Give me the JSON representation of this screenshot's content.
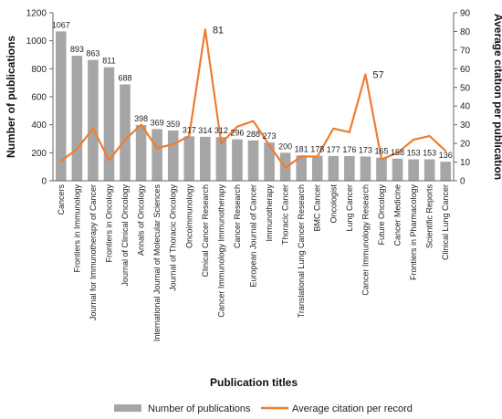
{
  "chart_data": {
    "type": "bar",
    "xlabel": "Publication titles",
    "ylabel": "Number of publications",
    "y2label": "Average citation per publication",
    "ylim": [
      0,
      1200
    ],
    "y2lim": [
      0,
      90
    ],
    "yticks": [
      "0",
      "200",
      "400",
      "600",
      "800",
      "1000",
      "1200"
    ],
    "y2ticks": [
      "0",
      "10",
      "20",
      "30",
      "40",
      "50",
      "60",
      "70",
      "80",
      "90"
    ],
    "grid": false,
    "legend_position": "bottom",
    "categories": [
      "Cancers",
      "Frontiers in Immunology",
      "Journal for Immunotherapy of Cancer",
      "Frontiers in Oncology",
      "Journal of Clinical Oncology",
      "Annals of Oncology",
      "International Journal of Molecular Sciences",
      "Journal of Thoracic Oncology",
      "Oncoimmunology",
      "Clinical Cancer Research",
      "Cancer Immunology Immunotherapy",
      "Cancer Research",
      "European Journal of Cancer",
      "Immunotherapy",
      "Thoracic Cancer",
      "Translational Lung Cancer Research",
      "BMC Cancer",
      "Oncologist",
      "Lung Cancer",
      "Cancer Immunology Research",
      "Future Oncology",
      "Cancer Medicine",
      "Frontiers in Pharmacology",
      "Scientific Reports",
      "Clinical Lung Cancer"
    ],
    "series": [
      {
        "name": "Number of publications",
        "type": "bar",
        "axis": "left",
        "color": "#a6a6a6",
        "values": [
          1067,
          893,
          863,
          811,
          688,
          398,
          369,
          359,
          317,
          314,
          312,
          296,
          288,
          273,
          200,
          181,
          178,
          177,
          176,
          173,
          165,
          158,
          153,
          153,
          136
        ],
        "labels": [
          "1067",
          "893",
          "863",
          "811",
          "688",
          "398",
          "369",
          "359",
          "317",
          "314",
          "312",
          "296",
          "288",
          "273",
          "200",
          "181",
          "178",
          "177",
          "176",
          "173",
          "165",
          "158",
          "153",
          "153",
          "136"
        ]
      },
      {
        "name": "Average citation per record",
        "type": "line",
        "axis": "right",
        "color": "#ed7d31",
        "values": [
          10.5,
          17,
          28,
          11,
          22,
          30,
          17.5,
          19.5,
          24,
          81,
          20,
          29,
          32,
          19,
          7,
          13,
          13,
          28,
          26,
          57,
          11.5,
          15,
          22,
          24,
          16
        ]
      }
    ],
    "annotations": [
      {
        "text": "81",
        "category_index": 9
      },
      {
        "text": "57",
        "category_index": 19
      }
    ]
  }
}
